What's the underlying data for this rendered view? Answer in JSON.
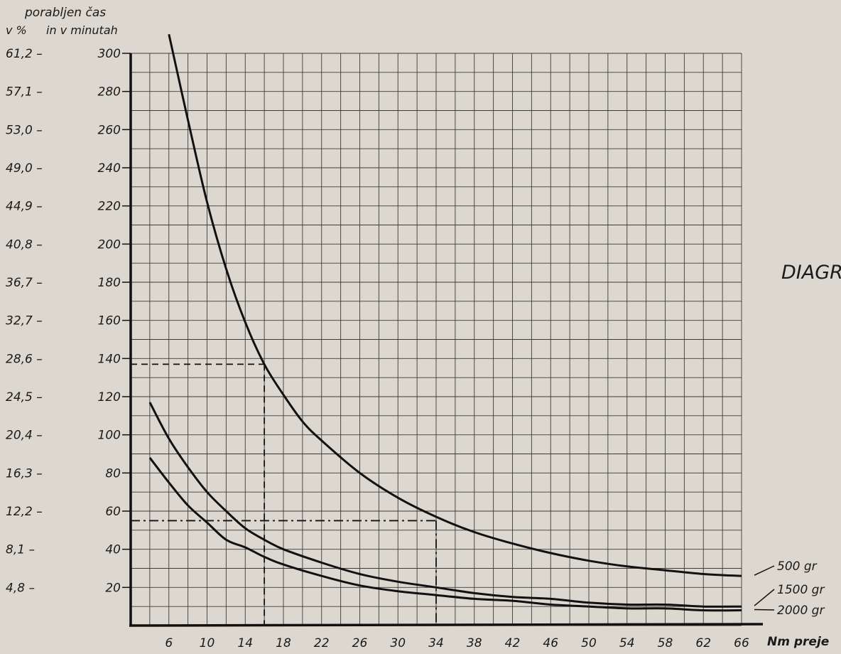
{
  "chart_data": {
    "type": "line",
    "title": "DIAGR",
    "ylabel_line1": "porabljen čas",
    "ylabel_pct": "v %",
    "ylabel_min": "in v minutah",
    "xlabel": "Nm preje",
    "xlim": [
      2,
      66
    ],
    "ylim": [
      0,
      300
    ],
    "grid": true,
    "x_ticks": [
      "6",
      "10",
      "14",
      "18",
      "22",
      "26",
      "30",
      "34",
      "38",
      "42",
      "46",
      "50",
      "54",
      "58",
      "62",
      "66"
    ],
    "y_ticks": [
      "300",
      "280",
      "260",
      "240",
      "220",
      "200",
      "180",
      "160",
      "140",
      "120",
      "100",
      "80",
      "60",
      "40",
      "20"
    ],
    "y_pct_ticks": [
      "61,2 –",
      "57,1 –",
      "53,0 –",
      "49,0 –",
      "44,9 –",
      "40,8 –",
      "36,7 –",
      "32,7 –",
      "28,6 –",
      "24,5 –",
      "20,4 –",
      "16,3 –",
      "12,2 –",
      "8,1 –",
      "4,8 –"
    ],
    "series": [
      {
        "name": "500 gr",
        "x": [
          6,
          8,
          10,
          12,
          14,
          16,
          18,
          20,
          22,
          26,
          30,
          34,
          38,
          42,
          46,
          50,
          54,
          58,
          62,
          66
        ],
        "y": [
          310,
          265,
          222,
          187,
          159,
          137,
          121,
          107,
          97,
          80,
          67,
          57,
          49,
          43,
          38,
          34,
          31,
          29,
          27,
          26
        ]
      },
      {
        "name": "1500 gr",
        "x": [
          4,
          6,
          8,
          10,
          12,
          14,
          16,
          18,
          22,
          26,
          30,
          34,
          38,
          42,
          46,
          50,
          54,
          58,
          62,
          66
        ],
        "y": [
          117,
          98,
          83,
          70,
          60,
          51,
          45,
          40,
          33,
          27,
          23,
          20,
          17,
          15,
          14,
          12,
          11,
          11,
          10,
          10
        ]
      },
      {
        "name": "2000 gr",
        "x": [
          4,
          6,
          8,
          10,
          12,
          14,
          16,
          18,
          22,
          26,
          30,
          34,
          38,
          42,
          46,
          50,
          54,
          58,
          62,
          66
        ],
        "y": [
          88,
          75,
          63,
          54,
          45,
          41,
          36,
          32,
          26,
          21,
          18,
          16,
          14,
          13,
          11,
          10,
          9,
          9,
          8,
          8
        ]
      }
    ],
    "reference_lines": [
      {
        "style": "dashed",
        "x": 16,
        "y": 137
      },
      {
        "style": "dash-dot",
        "x": 34,
        "y": 55
      }
    ]
  }
}
